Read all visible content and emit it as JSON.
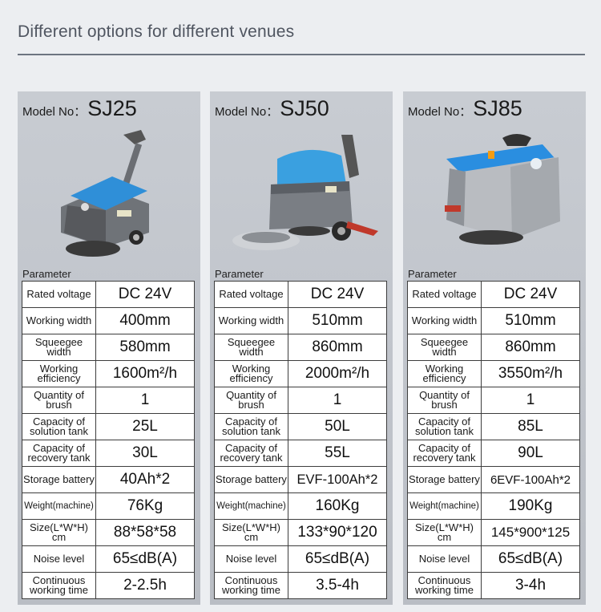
{
  "page": {
    "title": "Different options for different venues"
  },
  "labels": {
    "model": "Model No：",
    "parameter": "Parameter"
  },
  "spec_keys": [
    "Rated voltage",
    "Working width",
    "Squeegee width",
    "Working efficiency",
    "Quantity of brush",
    "Capacity of solution tank",
    "Capacity of recovery tank",
    "Storage battery",
    "Weight(machine)",
    "Size(L*W*H) cm",
    "Noise level",
    "Continuous working time"
  ],
  "spec_keys_lines": [
    [
      "Rated voltage"
    ],
    [
      "Working width"
    ],
    [
      "Squeegee width"
    ],
    [
      "Working",
      "efficiency"
    ],
    [
      "Quantity of",
      "brush"
    ],
    [
      "Capacity of",
      "solution tank"
    ],
    [
      "Capacity of",
      "recovery tank"
    ],
    [
      "Storage battery"
    ],
    [
      "Weight(machine)"
    ],
    [
      "Size(L*W*H)",
      "cm"
    ],
    [
      "Noise level"
    ],
    [
      "Continuous",
      "working time"
    ]
  ],
  "models": [
    {
      "name": "SJ25",
      "specs": [
        "DC 24V",
        "400mm",
        "580mm",
        "1600m²/h",
        "1",
        "25L",
        "30L",
        "40Ah*2",
        "76Kg",
        "88*58*58",
        "65≤dB(A)",
        "2-2.5h"
      ],
      "body_color": "#2f8fd8"
    },
    {
      "name": "SJ50",
      "specs": [
        "DC 24V",
        "510mm",
        "860mm",
        "2000m²/h",
        "1",
        "50L",
        "55L",
        "EVF-100Ah*2",
        "160Kg",
        "133*90*120",
        "65≤dB(A)",
        "3.5-4h"
      ],
      "body_color": "#3aa0e0"
    },
    {
      "name": "SJ85",
      "specs": [
        "DC 24V",
        "510mm",
        "860mm",
        "3550m²/h",
        "1",
        "85L",
        "90L",
        "6EVF-100Ah*2",
        "190Kg",
        "145*900*125",
        "65≤dB(A)",
        "3-4h"
      ],
      "body_color": "#2a8ee0"
    }
  ]
}
